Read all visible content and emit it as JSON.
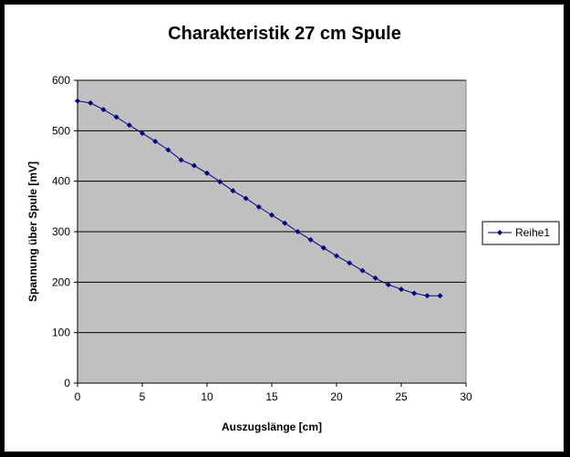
{
  "chart_data": {
    "type": "line",
    "title": "Charakteristik 27 cm Spule",
    "xlabel": "Auszugslänge [cm]",
    "ylabel": "Spannung über Spule [mV]",
    "xlim": [
      0,
      30
    ],
    "ylim": [
      0,
      600
    ],
    "xticks": [
      0,
      5,
      10,
      15,
      20,
      25,
      30
    ],
    "yticks": [
      0,
      100,
      200,
      300,
      400,
      500,
      600
    ],
    "grid": "horizontal",
    "legend_position": "right",
    "plot_background": "#c0c0c0",
    "series": [
      {
        "name": "Reihe1",
        "color": "#000080",
        "marker": "diamond",
        "x": [
          0,
          1,
          2,
          3,
          4,
          5,
          6,
          7,
          8,
          9,
          10,
          11,
          12,
          13,
          14,
          15,
          16,
          17,
          18,
          19,
          20,
          21,
          22,
          23,
          24,
          25,
          26,
          27,
          28
        ],
        "y": [
          559,
          555,
          542,
          527,
          511,
          495,
          479,
          462,
          442,
          431,
          416,
          399,
          381,
          366,
          349,
          333,
          317,
          300,
          284,
          268,
          252,
          238,
          223,
          208,
          195,
          186,
          178,
          173,
          173
        ]
      }
    ]
  }
}
